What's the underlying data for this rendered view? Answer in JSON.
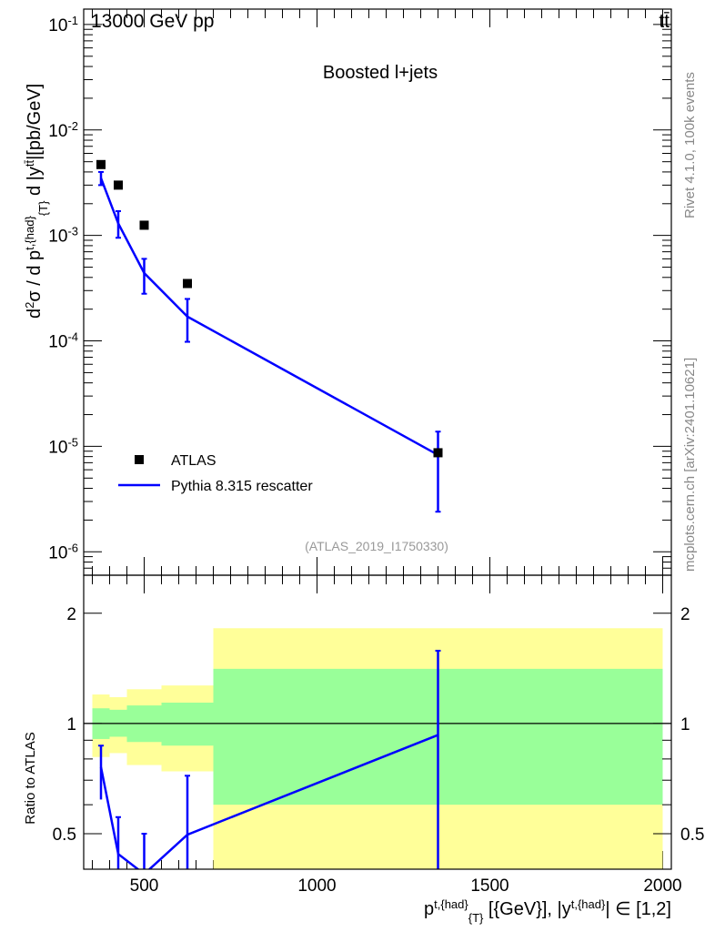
{
  "header": {
    "left": "13000 GeV pp",
    "right": "tt̄"
  },
  "side": {
    "rivet": "Rivet 4.1.0,  100k events",
    "mcplots": "mcplots.cern.ch [arXiv:2401.10621]"
  },
  "chart_data": [
    {
      "type": "scatter",
      "title": "Boosted l+jets",
      "analysis": "(ATLAS_2019_I1750330)",
      "ylabel": "d²σ / d p^{t,{had}}_{T} d |y^{tt̄}| [pb/GeV]",
      "yscale": "log",
      "ylim": [
        6e-07,
        0.14
      ],
      "xlim": [
        325,
        2025
      ],
      "yticks": [
        {
          "v": 0.1,
          "label": "10",
          "exp": "-1"
        },
        {
          "v": 0.01,
          "label": "10",
          "exp": "-2"
        },
        {
          "v": 0.001,
          "label": "10",
          "exp": "-3"
        },
        {
          "v": 0.0001,
          "label": "10",
          "exp": "-4"
        },
        {
          "v": 1e-05,
          "label": "10",
          "exp": "-5"
        },
        {
          "v": 1e-06,
          "label": "10",
          "exp": "-6"
        }
      ],
      "series": [
        {
          "name": "ATLAS",
          "marker": "square",
          "color": "#000000",
          "x": [
            375,
            425,
            500,
            625,
            1350
          ],
          "y": [
            0.0047,
            0.003,
            0.00125,
            0.00035,
            8.7e-06
          ]
        },
        {
          "name": "Pythia 8.315 rescatter",
          "marker": "line",
          "color": "#0000ff",
          "x": [
            375,
            425,
            500,
            625,
            1350
          ],
          "y": [
            0.0035,
            0.0013,
            0.00044,
            0.00017,
            8.3e-06
          ],
          "err_lo": [
            0.003,
            0.00095,
            0.00028,
            9.8e-05,
            2.4e-06
          ],
          "err_hi": [
            0.004,
            0.0017,
            0.0006,
            0.00025,
            1.38e-05
          ]
        }
      ]
    },
    {
      "type": "ratio",
      "ylabel": "Ratio to ATLAS",
      "xlabel": "p^{t,{had}}_{T} [{GeV}], |y^{t,{had}}| ∈ [1,2]",
      "yscale": "log",
      "ylim": [
        0.4,
        2.54
      ],
      "xticks": [
        500,
        1000,
        1500,
        2000
      ],
      "yticks": [
        0.5,
        1,
        2
      ],
      "bins": [
        350,
        400,
        450,
        550,
        700,
        2000
      ],
      "band_outer_hi": [
        1.2,
        1.18,
        1.24,
        1.27,
        1.82
      ],
      "band_outer_lo": [
        0.81,
        0.83,
        0.77,
        0.74,
        0.3
      ],
      "band_inner_hi": [
        1.1,
        1.09,
        1.12,
        1.14,
        1.41
      ],
      "band_inner_lo": [
        0.907,
        0.92,
        0.89,
        0.87,
        0.6
      ],
      "series": {
        "name": "Pythia 8.315 rescatter",
        "x": [
          375,
          425,
          500,
          625,
          1350
        ],
        "y": [
          0.76,
          0.44,
          0.35,
          0.497,
          0.93
        ],
        "err_lo": [
          0.62,
          0.3,
          0.2,
          0.3,
          0.3
        ],
        "err_hi": [
          0.87,
          0.555,
          0.5,
          0.72,
          1.58
        ]
      },
      "colors": {
        "outer": "#ffff99",
        "inner": "#99ff99"
      }
    }
  ]
}
